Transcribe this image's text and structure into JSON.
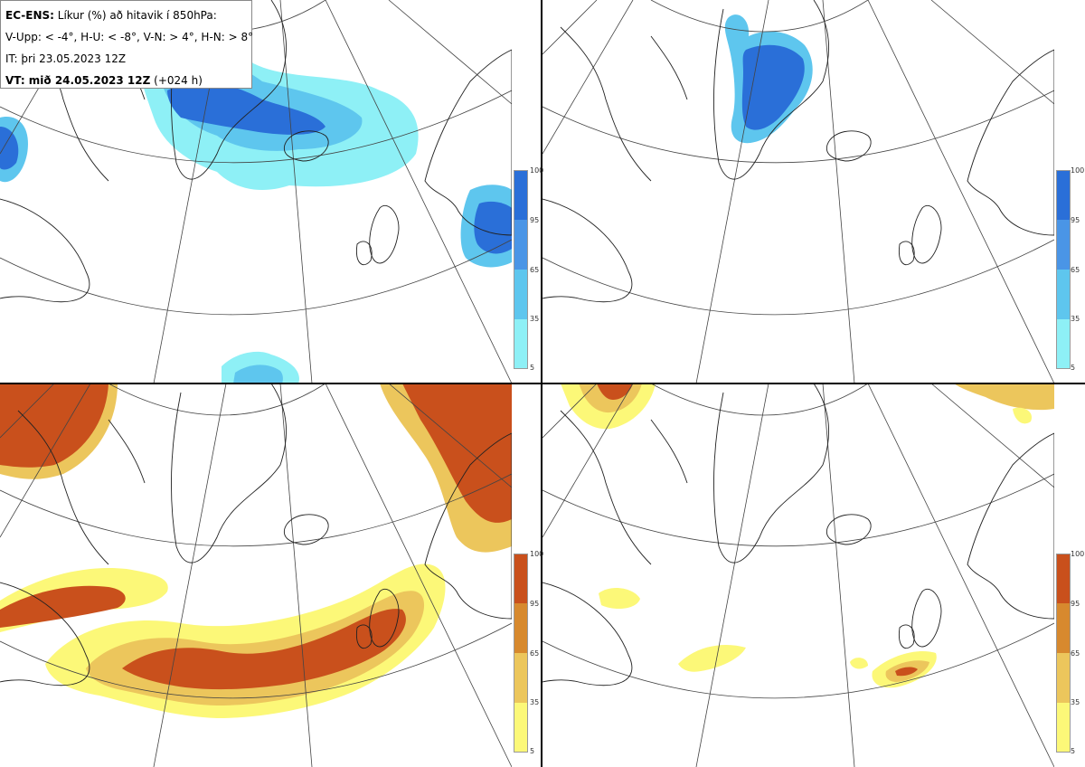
{
  "legend": {
    "product": "EC-ENS:",
    "title": "Líkur (%) að hitavik í 850hPa:",
    "thresholds": "V-Upp: < -4°, H-U: < -8°, V-N: > 4°, H-N: > 8°",
    "initial_time": "IT: þri 23.05.2023 12Z",
    "valid_label": "VT: mið 24.05.2023 12Z",
    "lead": "(+024 h)"
  },
  "colorbars": {
    "cold": {
      "ticks": [
        "100",
        "95",
        "65",
        "35",
        "5"
      ],
      "colors": [
        "#2a6fd8",
        "#4a95e6",
        "#5ec6ee",
        "#8ef0f6"
      ]
    },
    "warm": {
      "ticks": [
        "100",
        "95",
        "65",
        "35",
        "5"
      ],
      "colors": [
        "#c9501c",
        "#d7892e",
        "#ecc65c",
        "#fcf878"
      ]
    }
  },
  "panels": [
    {
      "name": "V-Upp",
      "hazard": "cold",
      "threshold": "< -4°"
    },
    {
      "name": "H-U",
      "hazard": "cold",
      "threshold": "< -8°"
    },
    {
      "name": "V-N",
      "hazard": "warm",
      "threshold": "> 4°"
    },
    {
      "name": "H-N",
      "hazard": "warm",
      "threshold": "> 8°"
    }
  ]
}
